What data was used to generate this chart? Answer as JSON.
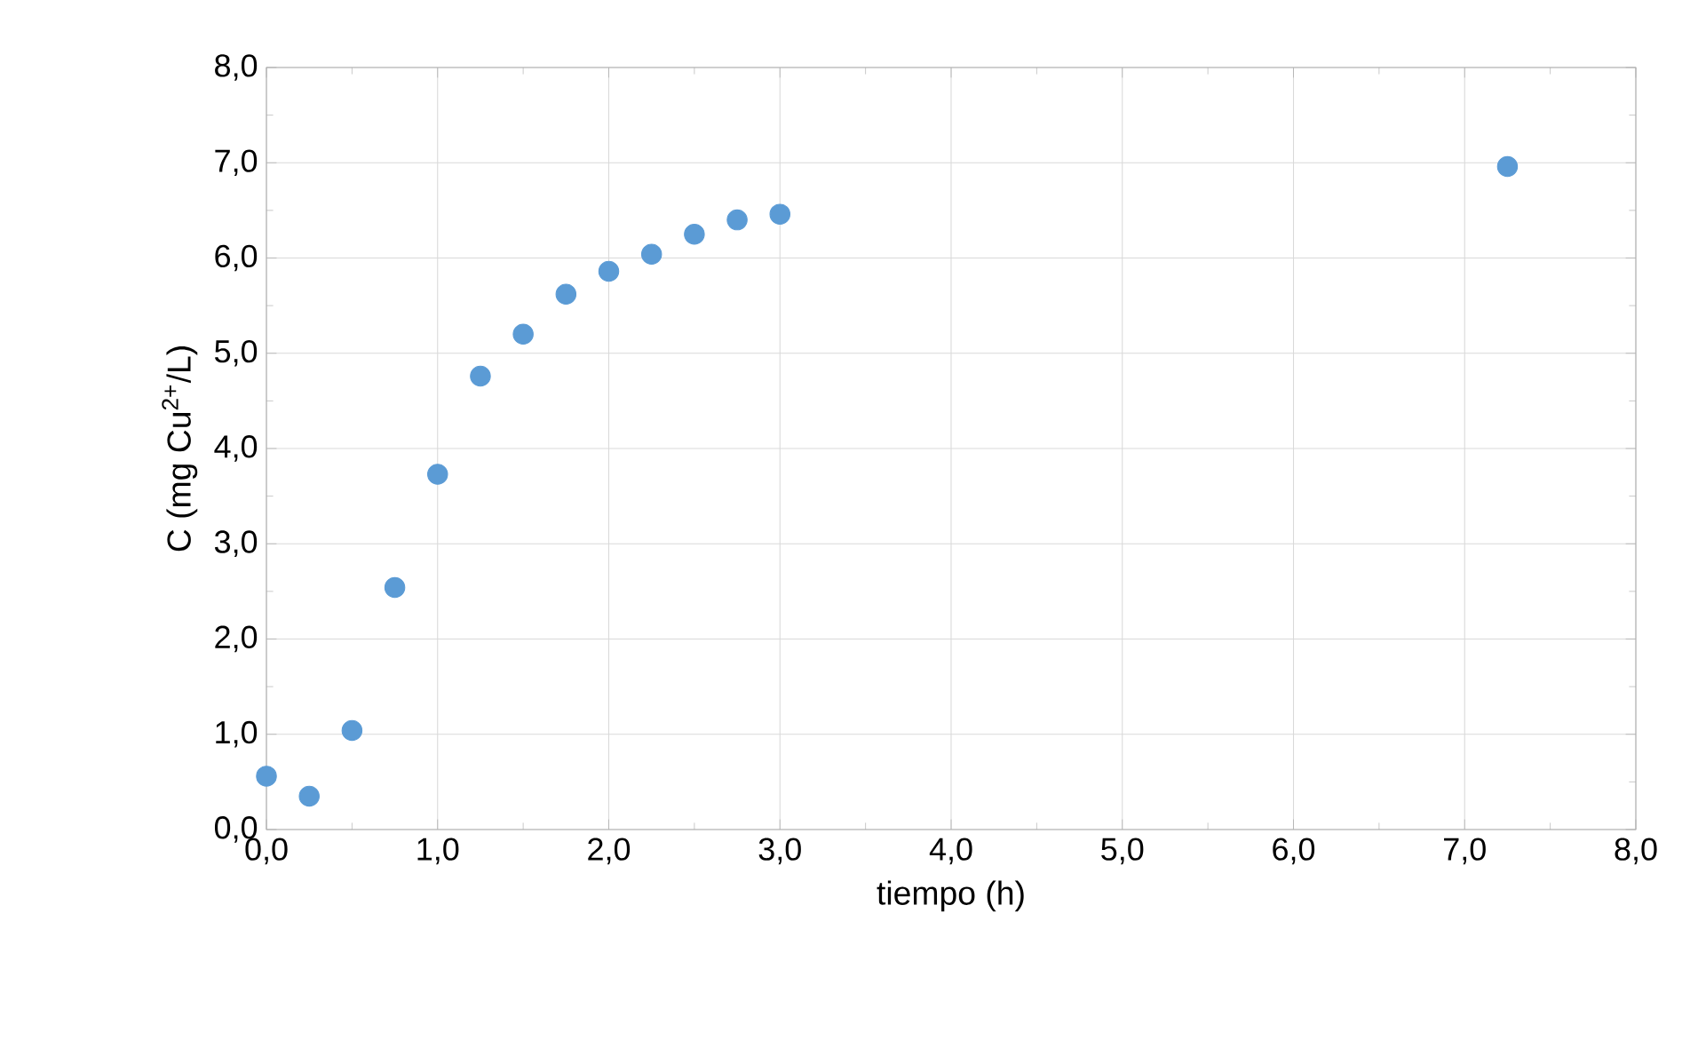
{
  "chart_data": {
    "type": "scatter",
    "xlabel": "tiempo (h)",
    "ylabel": "C (mg Cu$^{2+}$/L)",
    "x": [
      0,
      0.25,
      0.5,
      0.75,
      1.0,
      1.25,
      1.5,
      1.75,
      2.0,
      2.25,
      2.5,
      2.75,
      3.0,
      7.25
    ],
    "series": [
      {
        "color": "#5b9bd5",
        "values": [
          0.56,
          0.35,
          1.04,
          2.54,
          3.73,
          4.76,
          5.2,
          5.62,
          5.86,
          6.04,
          6.25,
          6.4,
          6.46,
          6.96
        ]
      }
    ],
    "xlim": [
      0,
      8
    ],
    "ylim": [
      0,
      8
    ],
    "xticks": [
      {
        "value": 0,
        "label": "0,0"
      },
      {
        "value": 1,
        "label": "1,0"
      },
      {
        "value": 2,
        "label": "2,0"
      },
      {
        "value": 3,
        "label": "3,0"
      },
      {
        "value": 4,
        "label": "4,0"
      },
      {
        "value": 5,
        "label": "5,0"
      },
      {
        "value": 6,
        "label": "6,0"
      },
      {
        "value": 7,
        "label": "7,0"
      },
      {
        "value": 8,
        "label": "8,0"
      }
    ],
    "yticks": [
      {
        "value": 0,
        "label": "0,0"
      },
      {
        "value": 1,
        "label": "1,0"
      },
      {
        "value": 2,
        "label": "2,0"
      },
      {
        "value": 3,
        "label": "3,0"
      },
      {
        "value": 4,
        "label": "4,0"
      },
      {
        "value": 5,
        "label": "5,0"
      },
      {
        "value": 6,
        "label": "6,0"
      },
      {
        "value": 7,
        "label": "7,0"
      },
      {
        "value": 8,
        "label": "8,0"
      }
    ],
    "grid": true,
    "marker": "circle"
  }
}
